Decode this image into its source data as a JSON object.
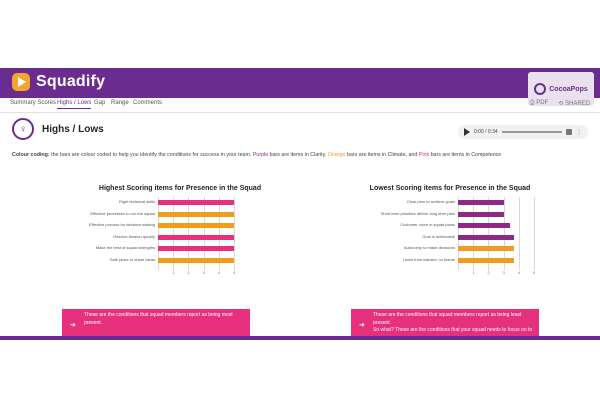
{
  "app": {
    "name": "Squadify",
    "client_name": "CocoaPops"
  },
  "tabs": [
    {
      "label": "Summary Scores"
    },
    {
      "label": "Highs / Lows",
      "active": true
    },
    {
      "label": "Gap"
    },
    {
      "label": "Range"
    },
    {
      "label": "Comments"
    }
  ],
  "toolbar": {
    "pdf_label": "PDF",
    "shared_label": "SHARED"
  },
  "page": {
    "title": "Highs / Lows"
  },
  "audio": {
    "time": "0:00 / 0:34"
  },
  "colour_coding": {
    "label": "Colour coding:",
    "text1": " the bars are colour coded to help you identify the conditions for success in your team. ",
    "purple": "Purple",
    "text2": " bars are items in Clarity, ",
    "orange": "Orange",
    "text3": " bars are items in Climate, and ",
    "pink": "Pink",
    "text4": " bars are items in Competence"
  },
  "colors": {
    "brand": "#6b2c8f",
    "purple": "#8e2a86",
    "orange": "#f29c1e",
    "pink": "#e7307d"
  },
  "chart_data": [
    {
      "type": "bar",
      "title": "Highest Scoring items for Presence in the Squad",
      "categories": [
        "Right technical skills",
        "Effective processes to run the squad",
        "Effective process for decision making",
        "Resolve tension quickly",
        "Make the best of squad strengths",
        "Safe place to share ideas"
      ],
      "values": [
        5.0,
        5.0,
        5.0,
        5.0,
        5.0,
        5.0
      ],
      "colors": [
        "#e7307d",
        "#f29c1e",
        "#f29c1e",
        "#e7307d",
        "#e7307d",
        "#f29c1e"
      ],
      "xlim": [
        0,
        5
      ],
      "ticks": [
        "1",
        "2",
        "3",
        "4",
        "5"
      ]
    },
    {
      "type": "bar",
      "title": "Lowest Scoring items for Presence in the Squad",
      "categories": [
        "Clear plan to achieve goals",
        "Short term priorities deliver long term plan",
        "Customer voice in squad plans",
        "Goal is achievable",
        "Autonomy to make decisions",
        "Learn from failures: no blame"
      ],
      "values": [
        3.0,
        3.0,
        3.4,
        3.7,
        3.7,
        3.7
      ],
      "colors": [
        "#8e2a86",
        "#8e2a86",
        "#8e2a86",
        "#8e2a86",
        "#f29c1e",
        "#f29c1e"
      ],
      "xlim": [
        0,
        5
      ],
      "ticks": [
        "1",
        "2",
        "3",
        "4",
        "5"
      ]
    }
  ],
  "info_boxes": [
    {
      "text": "These are the conditions that squad members report as being most present."
    },
    {
      "text": "These are the conditions that squad members report as being least present.",
      "extra": "So what? These are the conditions that your squad needs to focus on to"
    }
  ]
}
